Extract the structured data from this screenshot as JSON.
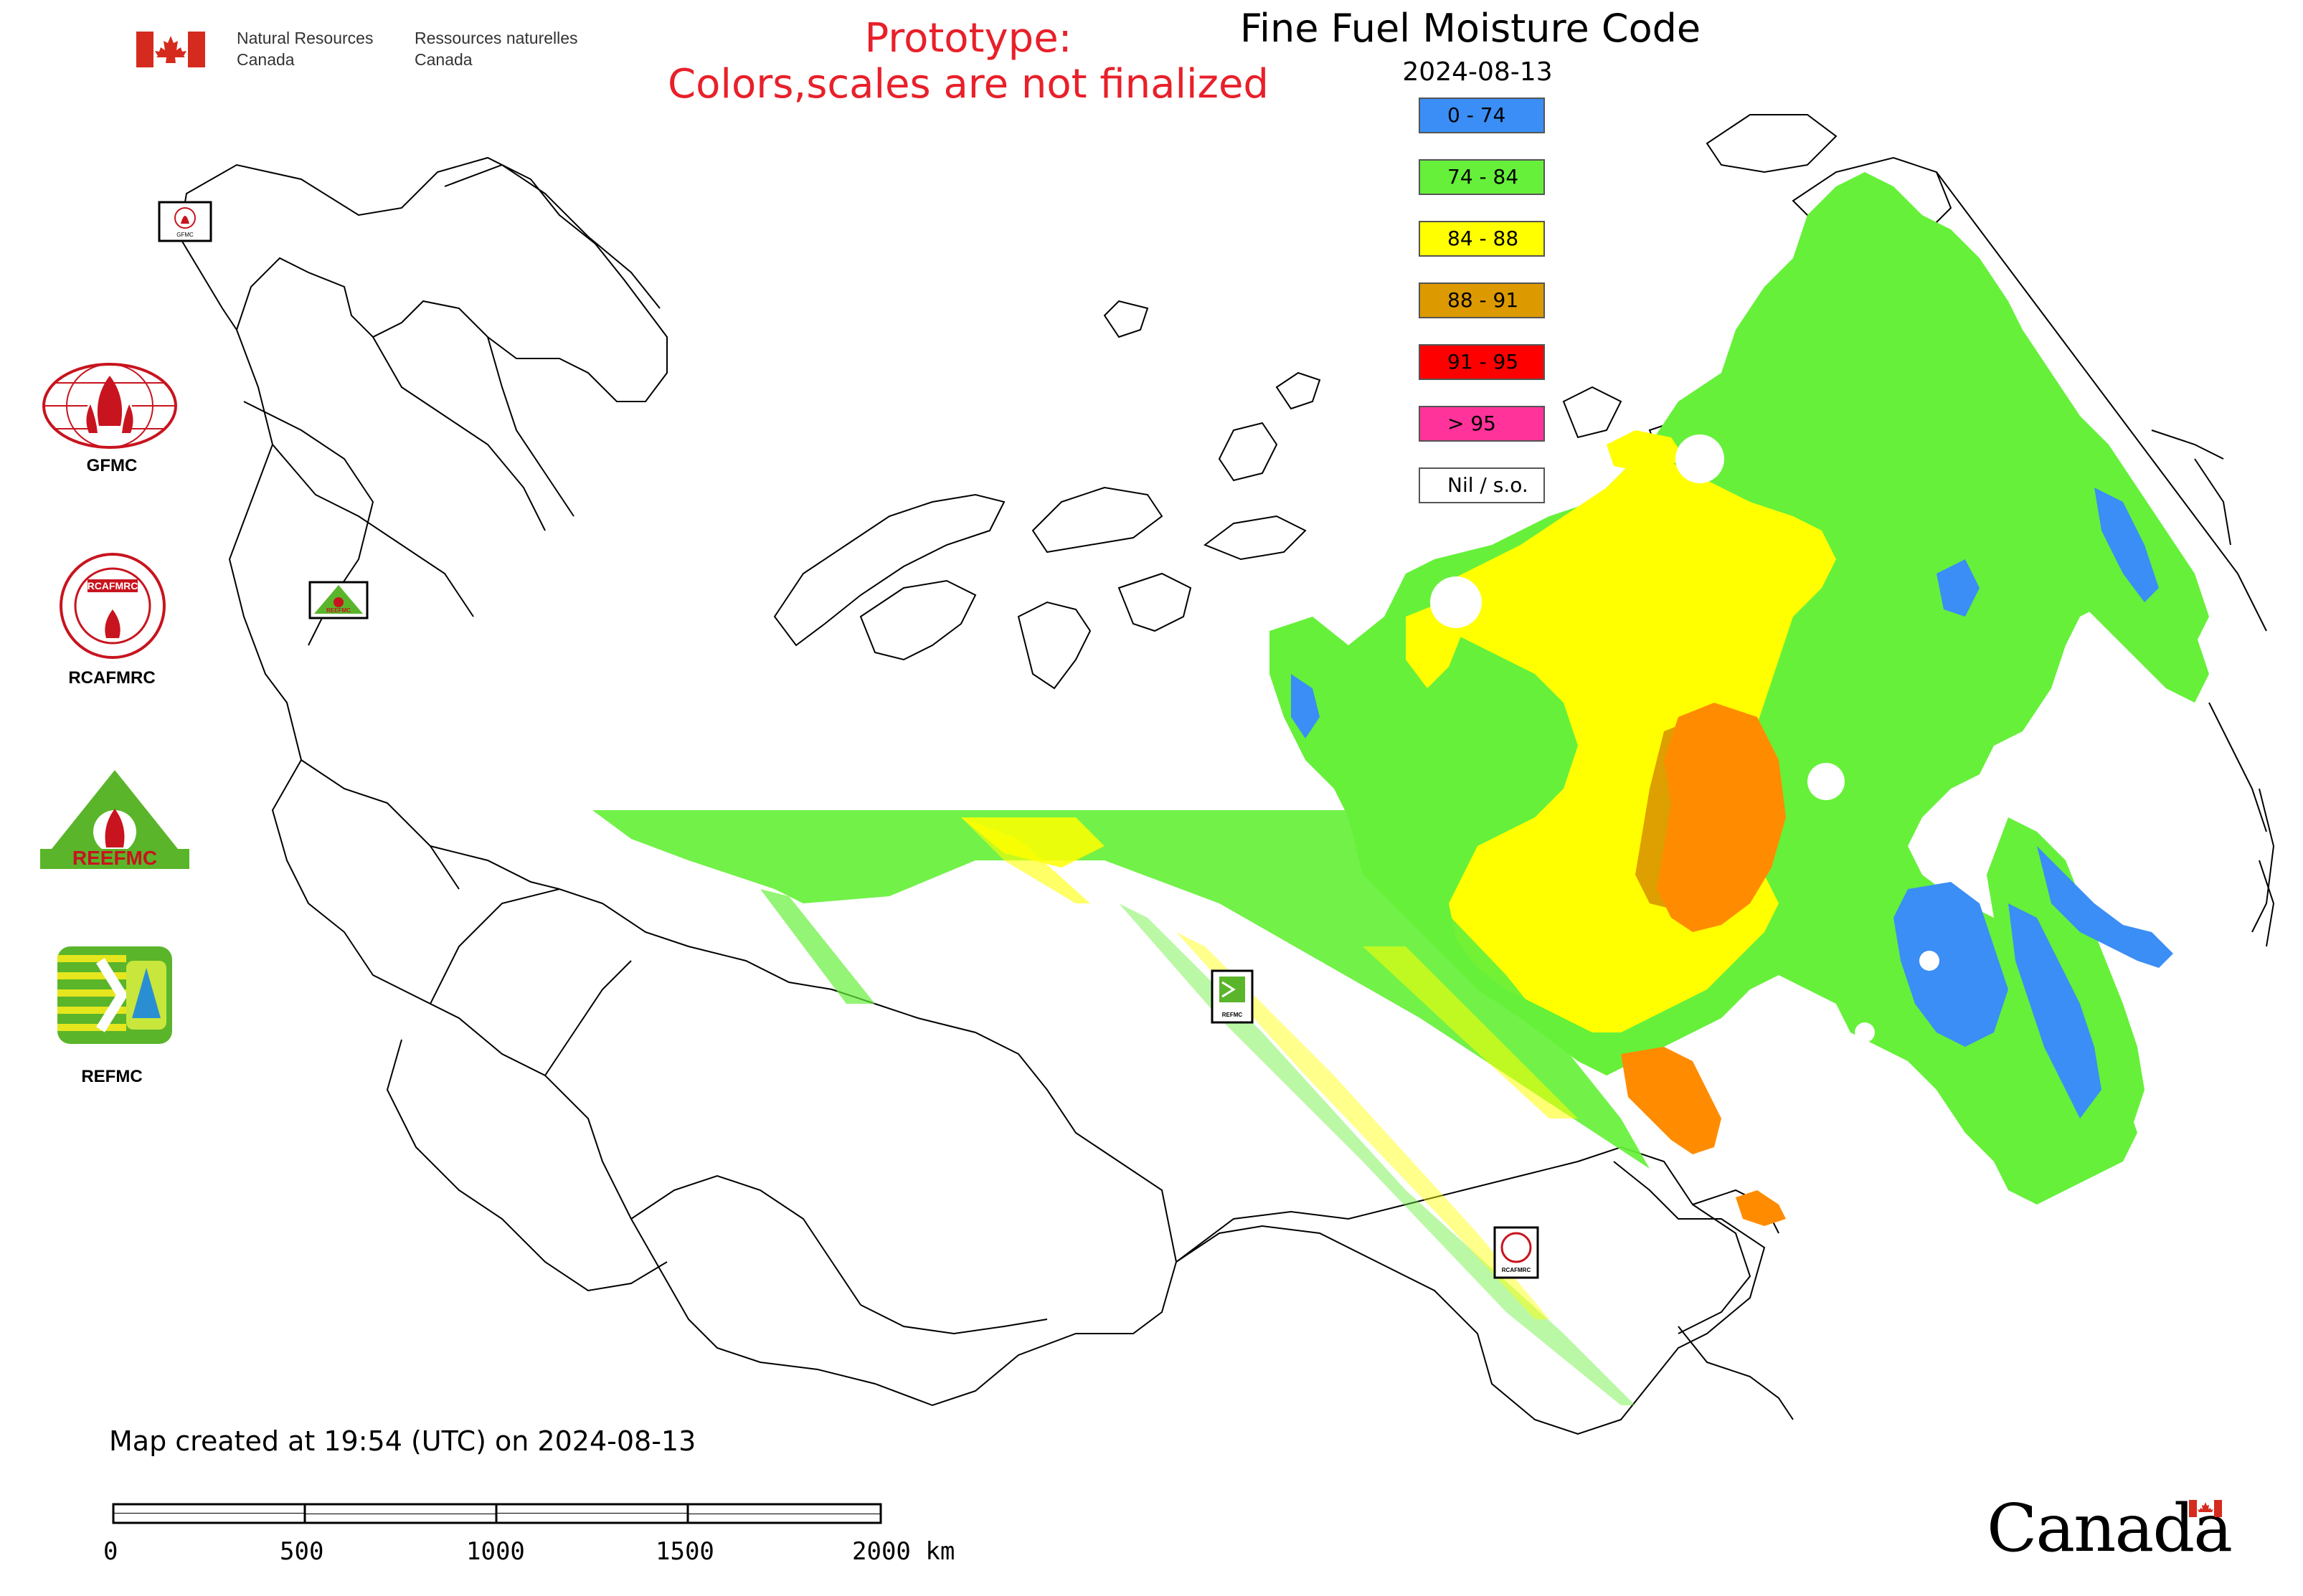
{
  "header": {
    "department_en_line1": "Natural Resources",
    "department_en_line2": "Canada",
    "department_fr_line1": "Ressources naturelles",
    "department_fr_line2": "Canada",
    "prototype_line1": "Prototype:",
    "prototype_line2": "Colors,scales are not finalized",
    "map_title": "Fine Fuel Moisture Code",
    "map_date": "2024-08-13"
  },
  "legend": [
    {
      "label": "0 - 74",
      "color": "#3a8ef5"
    },
    {
      "label": "74 - 84",
      "color": "#66f03a"
    },
    {
      "label": "84 - 88",
      "color": "#ffff00"
    },
    {
      "label": "88 - 91",
      "color": "#dc9a00"
    },
    {
      "label": "91 - 95",
      "color": "#ff0000"
    },
    {
      "label": "> 95",
      "color": "#ff3399"
    },
    {
      "label": "Nil / s.o.",
      "color": "#ffffff"
    }
  ],
  "logos": [
    {
      "name": "GFMC",
      "icon": "gfmc-logo-icon"
    },
    {
      "name": "RCAFMRC",
      "icon": "rcafmrc-logo-icon"
    },
    {
      "name": "REEFMC",
      "icon": "reefmc-logo-icon"
    },
    {
      "name": "REFMC",
      "icon": "refmc-logo-icon"
    }
  ],
  "map_markers": [
    "GFMC",
    "REEFMC",
    "REFMC",
    "RCAFMRC"
  ],
  "footer": {
    "created_text": "Map created at 19:54 (UTC) on 2024-08-13",
    "scale_ticks": [
      "0",
      "500",
      "1000",
      "1500",
      "2000 km"
    ],
    "wordmark": "Canada"
  },
  "colors": {
    "prototype_red": "#e8202a",
    "flag_red": "#d52b1e",
    "logo_red": "#c8141e",
    "logo_green": "#5ab52a",
    "boundary": "#000000"
  }
}
